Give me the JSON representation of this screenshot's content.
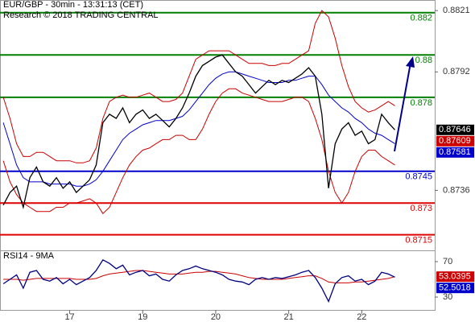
{
  "chart_data": [
    {
      "type": "line",
      "title": "EUR/GBP - 30min - 13:31:13 (CET)",
      "subtitle": "Research © 2018 TRADING CENTRAL",
      "xlim": [
        -0.5,
        65
      ],
      "ylim": [
        0.8708,
        0.8826
      ],
      "yticks": [
        0.8736,
        0.8792,
        0.8821
      ],
      "series": [
        {
          "color": "#000000",
          "values": [
            0.8729,
            0.8735,
            0.8738,
            0.8728,
            0.8742,
            0.8747,
            0.874,
            0.8738,
            0.8742,
            0.8737,
            0.874,
            0.8735,
            0.8738,
            0.8741,
            0.8748,
            0.8768,
            0.8772,
            0.877,
            0.8775,
            0.8768,
            0.8772,
            0.8774,
            0.877,
            0.8772,
            0.8769,
            0.8766,
            0.877,
            0.8775,
            0.8782,
            0.879,
            0.8795,
            0.8797,
            0.8799,
            0.88,
            0.8796,
            0.8792,
            0.879,
            0.8786,
            0.8782,
            0.8785,
            0.8788,
            0.8786,
            0.8788,
            0.8787,
            0.8789,
            0.8791,
            0.8794,
            0.879,
            0.8772,
            0.8737,
            0.8758,
            0.8765,
            0.8768,
            0.8762,
            0.8764,
            0.8758,
            0.876,
            0.8772,
            0.8768,
            0.87646
          ]
        },
        {
          "color": "#0000cc",
          "values": [
            0.8768,
            0.8758,
            0.8748,
            0.8742,
            0.874,
            0.874,
            0.874,
            0.8739,
            0.8739,
            0.8739,
            0.8739,
            0.8738,
            0.8738,
            0.8739,
            0.8741,
            0.8745,
            0.875,
            0.8755,
            0.876,
            0.8763,
            0.8765,
            0.8767,
            0.8768,
            0.8769,
            0.8769,
            0.8769,
            0.877,
            0.8771,
            0.8774,
            0.8778,
            0.8782,
            0.8786,
            0.8789,
            0.8791,
            0.8792,
            0.8792,
            0.8791,
            0.879,
            0.8789,
            0.8788,
            0.8787,
            0.8787,
            0.8787,
            0.8788,
            0.8788,
            0.8789,
            0.879,
            0.879,
            0.8786,
            0.8781,
            0.8778,
            0.8775,
            0.8773,
            0.877,
            0.8768,
            0.8765,
            0.8763,
            0.8762,
            0.876,
            0.87581
          ]
        },
        {
          "color": "#cc0000",
          "values": [
            0.878,
            0.877,
            0.8758,
            0.8752,
            0.8752,
            0.8754,
            0.8754,
            0.8752,
            0.875,
            0.875,
            0.875,
            0.8749,
            0.8749,
            0.875,
            0.8756,
            0.877,
            0.8778,
            0.878,
            0.8781,
            0.878,
            0.878,
            0.8781,
            0.8782,
            0.878,
            0.8778,
            0.8778,
            0.8779,
            0.8782,
            0.879,
            0.8798,
            0.88,
            0.8802,
            0.8802,
            0.8802,
            0.8802,
            0.88,
            0.8798,
            0.8796,
            0.8796,
            0.8796,
            0.8795,
            0.8795,
            0.8796,
            0.8796,
            0.8798,
            0.88,
            0.8802,
            0.8815,
            0.8821,
            0.8818,
            0.8808,
            0.8795,
            0.8785,
            0.8778,
            0.8775,
            0.8773,
            0.8774,
            0.8776,
            0.8778,
            0.8776
          ]
        },
        {
          "color": "#cc0000",
          "values": [
            0.875,
            0.874,
            0.8734,
            0.873,
            0.8728,
            0.8726,
            0.8726,
            0.8726,
            0.8728,
            0.8728,
            0.873,
            0.873,
            0.8731,
            0.8732,
            0.873,
            0.8725,
            0.8728,
            0.8735,
            0.8742,
            0.8748,
            0.8752,
            0.8755,
            0.8756,
            0.8758,
            0.876,
            0.876,
            0.8762,
            0.8762,
            0.876,
            0.876,
            0.8765,
            0.8772,
            0.8778,
            0.8782,
            0.8784,
            0.8784,
            0.8782,
            0.8781,
            0.878,
            0.8779,
            0.8778,
            0.8778,
            0.8778,
            0.8779,
            0.878,
            0.878,
            0.8778,
            0.877,
            0.876,
            0.8745,
            0.8735,
            0.873,
            0.8735,
            0.8745,
            0.8752,
            0.8755,
            0.8755,
            0.8752,
            0.875,
            0.8748
          ]
        }
      ],
      "levels": [
        {
          "value": 0.882,
          "color": "#008000"
        },
        {
          "value": 0.88,
          "color": "#008000"
        },
        {
          "value": 0.878,
          "color": "#008000"
        },
        {
          "value": 0.8745,
          "color": "#0000cc"
        },
        {
          "value": 0.873,
          "color": "#e00000"
        },
        {
          "value": 0.8715,
          "color": "#e00000"
        }
      ],
      "last_values": [
        {
          "value": 0.87646,
          "color": "#000000"
        },
        {
          "value": 0.87609,
          "color": "#cc0000"
        },
        {
          "value": 0.87581,
          "color": "#0000cc"
        }
      ]
    },
    {
      "type": "line",
      "title": "RSI14 - 9MA",
      "xlim": [
        -0.5,
        65
      ],
      "xticks": [
        {
          "value": 10,
          "label": "17"
        },
        {
          "value": 21,
          "label": "19"
        },
        {
          "value": 32,
          "label": "20"
        },
        {
          "value": 43,
          "label": "21"
        },
        {
          "value": 54,
          "label": "22"
        }
      ],
      "ylim": [
        15.5,
        81.8
      ],
      "yticks": [
        30,
        70
      ],
      "series": [
        {
          "color": "#000080",
          "values": [
            45,
            50,
            55,
            40,
            58,
            60,
            50,
            48,
            52,
            45,
            50,
            44,
            48,
            52,
            60,
            72,
            68,
            62,
            66,
            55,
            58,
            60,
            54,
            56,
            50,
            48,
            55,
            60,
            62,
            65,
            62,
            60,
            58,
            55,
            50,
            48,
            47,
            44,
            50,
            52,
            50,
            52,
            51,
            53,
            55,
            58,
            60,
            52,
            40,
            25,
            45,
            52,
            54,
            48,
            50,
            44,
            48,
            58,
            56,
            52.5018
          ]
        },
        {
          "color": "#cc0000",
          "values": [
            50,
            50,
            50,
            49,
            50,
            51,
            51,
            51,
            51,
            51,
            51,
            50,
            50,
            50,
            51,
            54,
            56,
            57,
            58,
            59,
            60,
            60,
            59,
            58,
            57,
            56,
            56,
            56,
            57,
            58,
            58,
            59,
            59,
            58,
            57,
            56,
            54,
            52,
            51,
            50,
            50,
            50,
            50,
            51,
            52,
            53,
            54,
            54,
            51,
            47,
            46,
            46,
            46,
            47,
            47,
            48,
            49,
            50,
            51,
            53.0395
          ]
        }
      ],
      "last_values": [
        {
          "value": 53.0395,
          "color": "#cc0000"
        },
        {
          "value": 52.5018,
          "color": "#0000cc"
        }
      ]
    }
  ]
}
